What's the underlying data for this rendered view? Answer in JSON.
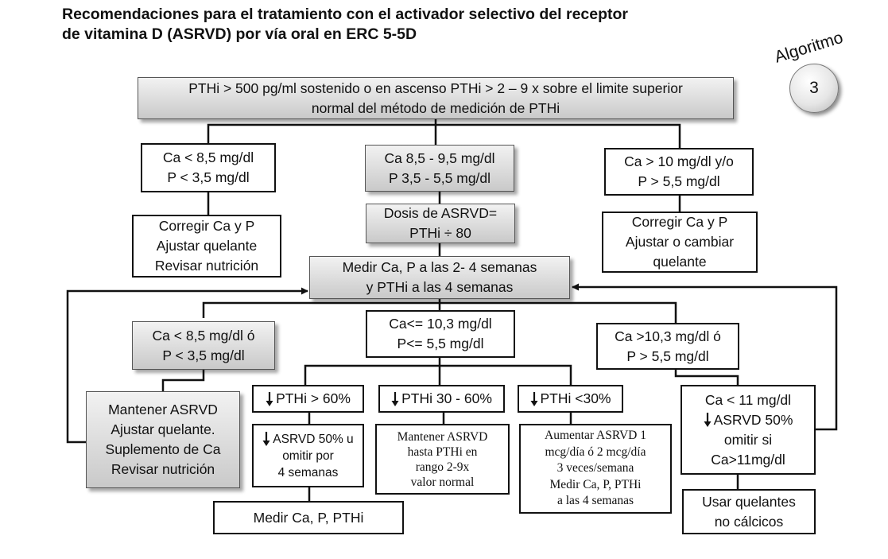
{
  "title": {
    "line1": "Recomendaciones para el tratamiento con el activador selectivo del receptor",
    "line2": "de vitamina D (ASRVD) por vía oral en ERC 5-5D"
  },
  "algorithm": {
    "label": "Algoritmo",
    "number": "3"
  },
  "arrow_icon": "down-arrow-icon",
  "colors": {
    "line": "#111111",
    "box_border": "#111111",
    "gray_gradient_top": "#f2f2f2",
    "gray_gradient_bottom": "#c9c9c9"
  },
  "nodes": {
    "top": {
      "line1": "PTHi > 500 pg/ml sostenido o en ascenso PTHi > 2 – 9 x sobre el limite superior",
      "line2": "normal del método de medición de PTHi"
    },
    "low_ca": {
      "line1": "Ca < 8,5 mg/dl",
      "line2": "P < 3,5 mg/dl"
    },
    "normal_ca": {
      "line1": "Ca 8,5 - 9,5 mg/dl",
      "line2": "P 3,5 - 5,5 mg/dl"
    },
    "high_ca": {
      "line1": "Ca > 10 mg/dl y/o",
      "line2": "P > 5,5 mg/dl"
    },
    "correct_left": {
      "line1": "Corregir Ca y P",
      "line2": "Ajustar quelante",
      "line3": "Revisar nutrición"
    },
    "dose": {
      "line1": "Dosis de ASRVD=",
      "line2": "PTHi ÷ 80"
    },
    "correct_right": {
      "line1": "Corregir Ca y P",
      "line2": "Ajustar o cambiar",
      "line3": "quelante"
    },
    "measure": {
      "line1": "Medir Ca, P a las 2- 4 semanas",
      "line2": "y PTHi a las 4 semanas"
    },
    "low_ca2": {
      "line1": "Ca < 8,5 mg/dl ó",
      "line2": "P < 3,5 mg/dl"
    },
    "mid_ca2": {
      "line1": "Ca<= 10,3 mg/dl",
      "line2": "P<= 5,5 mg/dl"
    },
    "high_ca2": {
      "line1": "Ca >10,3 mg/dl ó",
      "line2": "P > 5,5 mg/dl"
    },
    "maintain_left": {
      "line1": "Mantener ASRVD",
      "line2": "Ajustar quelante.",
      "line3": "Suplemento de Ca",
      "line4": "Revisar nutrición"
    },
    "pth_gt60": {
      "text": "PTHi > 60%"
    },
    "pth_30_60": {
      "text": "PTHi 30 - 60%"
    },
    "pth_lt30": {
      "text": "PTHi <30%"
    },
    "reduce_50": {
      "line1": "ASRVD 50% u",
      "line2": "omitir por",
      "line3": "4 semanas"
    },
    "maintain_mid": {
      "line1": "Mantener ASRVD",
      "line2": "hasta PTHi en",
      "line3": "rango 2-9x",
      "line4": "valor normal"
    },
    "increase": {
      "line1": "Aumentar ASRVD 1",
      "line2": "mcg/día ó 2 mcg/día",
      "line3": "3 veces/semana",
      "line4": "Medir Ca, P, PTHi",
      "line5": "a las 4 semanas"
    },
    "ca_lt11": {
      "line1": "Ca < 11 mg/dl",
      "line2": "ASRVD 50%",
      "line3": "omitir si",
      "line4": "Ca>11mg/dl"
    },
    "measure_final": {
      "text": "Medir Ca, P, PTHi"
    },
    "non_calcium": {
      "line1": "Usar quelantes",
      "line2": "no cálcicos"
    }
  }
}
